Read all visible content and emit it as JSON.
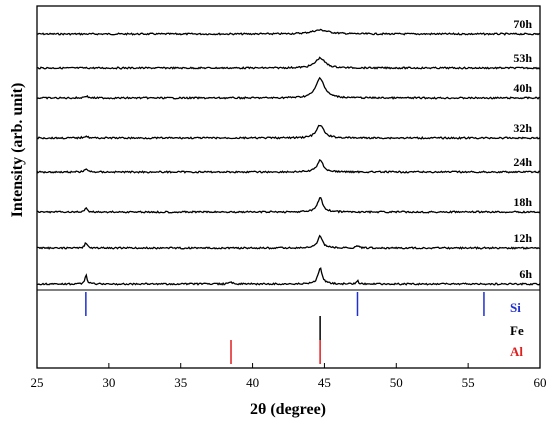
{
  "chart_data": {
    "type": "line",
    "xlabel": "2θ (degree)",
    "ylabel": "Intensity (arb. unit)",
    "xlim": [
      25,
      60
    ],
    "x_ticks": [
      25,
      30,
      35,
      40,
      45,
      50,
      55,
      60
    ],
    "x_tick_labels": [
      "25",
      "30",
      "35",
      "40",
      "45",
      "50",
      "55",
      "60"
    ],
    "grid": false,
    "series": [
      {
        "name": "70h",
        "peaks": [
          {
            "x": 44.7,
            "height": 4,
            "width": 1.4
          }
        ]
      },
      {
        "name": "53h",
        "peaks": [
          {
            "x": 44.7,
            "height": 10,
            "width": 0.8
          }
        ]
      },
      {
        "name": "40h",
        "peaks": [
          {
            "x": 44.7,
            "height": 20,
            "width": 0.7
          },
          {
            "x": 28.4,
            "height": 2,
            "width": 0.3
          }
        ]
      },
      {
        "name": "32h",
        "peaks": [
          {
            "x": 44.7,
            "height": 13,
            "width": 0.6
          },
          {
            "x": 28.4,
            "height": 2,
            "width": 0.3
          }
        ]
      },
      {
        "name": "24h",
        "peaks": [
          {
            "x": 44.7,
            "height": 12,
            "width": 0.5
          },
          {
            "x": 28.4,
            "height": 3,
            "width": 0.25
          }
        ]
      },
      {
        "name": "18h",
        "peaks": [
          {
            "x": 44.7,
            "height": 14,
            "width": 0.45
          },
          {
            "x": 28.4,
            "height": 4,
            "width": 0.2
          }
        ]
      },
      {
        "name": "12h",
        "peaks": [
          {
            "x": 44.7,
            "height": 12,
            "width": 0.4
          },
          {
            "x": 28.4,
            "height": 5,
            "width": 0.2
          },
          {
            "x": 47.3,
            "height": 2,
            "width": 0.25
          }
        ]
      },
      {
        "name": "6h",
        "peaks": [
          {
            "x": 44.7,
            "height": 16,
            "width": 0.35
          },
          {
            "x": 28.4,
            "height": 9,
            "width": 0.18
          },
          {
            "x": 47.3,
            "height": 3,
            "width": 0.2
          },
          {
            "x": 38.5,
            "height": 2,
            "width": 0.25
          }
        ]
      }
    ],
    "reference_lines": [
      {
        "name": "Si",
        "color": "#1f2fd0",
        "positions": [
          28.4,
          47.3,
          56.1
        ]
      },
      {
        "name": "Fe",
        "color": "#000000",
        "positions": [
          44.7
        ]
      },
      {
        "name": "Al",
        "color": "#e01f1f",
        "positions": [
          38.5,
          44.7
        ]
      }
    ]
  }
}
